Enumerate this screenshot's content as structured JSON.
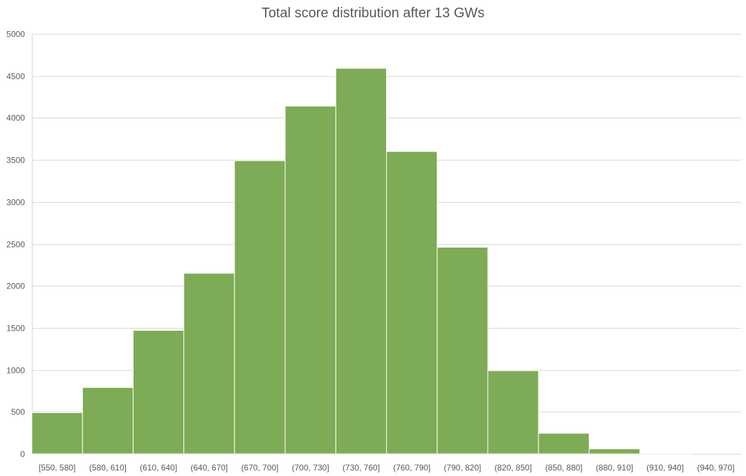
{
  "chart_data": {
    "type": "bar",
    "title": "Total score distribution after 13 GWs",
    "xlabel": "",
    "ylabel": "",
    "categories": [
      "[550, 580]",
      "(580, 610]",
      "(610, 640]",
      "(640, 670]",
      "(670, 700]",
      "(700, 730]",
      "(730, 760]",
      "(760, 790]",
      "(790, 820]",
      "(820, 850]",
      "(850, 880]",
      "(880, 910]",
      "(910, 940]",
      "(940, 970]"
    ],
    "values": [
      490,
      790,
      1470,
      2150,
      3490,
      4140,
      4590,
      3600,
      2460,
      990,
      245,
      60,
      5,
      0
    ],
    "ylim": [
      0,
      5000
    ],
    "yticks": [
      0,
      500,
      1000,
      1500,
      2000,
      2500,
      3000,
      3500,
      4000,
      4500,
      5000
    ],
    "grid": true,
    "legend": "none",
    "bar_color": "#7EAB55",
    "grid_color": "#D9D9D9",
    "text_color": "#595959"
  }
}
